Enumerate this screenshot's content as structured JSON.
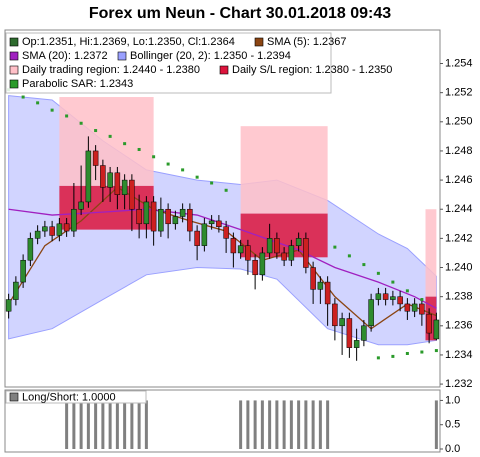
{
  "chart_data": {
    "type": "candlestick",
    "title": "Forex um Neun - Chart 30.01.2018 09:43",
    "candle_label": "Op:1.2351, Hi:1.2369, Lo:1.2350, Cl:1.2364",
    "candle_color": "#2e6b2e",
    "up_color": "#2e8b2e",
    "down_color": "#cc2020",
    "open": [
      1.237,
      1.2378,
      1.239,
      1.2405,
      1.242,
      1.2425,
      1.2428,
      1.2422,
      1.243,
      1.2425,
      1.244,
      1.2445,
      1.248,
      1.247,
      1.2455,
      1.2465,
      1.245,
      1.246,
      1.244,
      1.243,
      1.2445,
      1.2425,
      1.244,
      1.243,
      1.2435,
      1.244,
      1.2425,
      1.2415,
      1.243,
      1.2432,
      1.2428,
      1.242,
      1.241,
      1.2415,
      1.2405,
      1.2395,
      1.241,
      1.242,
      1.241,
      1.2405,
      1.2415,
      1.242,
      1.24,
      1.2385,
      1.239,
      1.2375,
      1.236,
      1.2365,
      1.2345,
      1.235,
      1.236,
      1.2378,
      1.2382,
      1.2378,
      1.238,
      1.2375,
      1.237,
      1.2375,
      1.2368,
      1.2351
    ],
    "high": [
      1.2382,
      1.2394,
      1.2409,
      1.2424,
      1.2429,
      1.2432,
      1.2432,
      1.2434,
      1.2434,
      1.2458,
      1.247,
      1.249,
      1.2484,
      1.2474,
      1.2469,
      1.2469,
      1.2464,
      1.2464,
      1.245,
      1.2449,
      1.2449,
      1.2448,
      1.2444,
      1.2439,
      1.2444,
      1.2444,
      1.2429,
      1.2434,
      1.2436,
      1.2436,
      1.2432,
      1.2424,
      1.2419,
      1.2419,
      1.2409,
      1.2414,
      1.243,
      1.2424,
      1.2414,
      1.2419,
      1.2424,
      1.2424,
      1.2404,
      1.2394,
      1.2394,
      1.2379,
      1.2369,
      1.2369,
      1.2358,
      1.2364,
      1.2382,
      1.2386,
      1.2386,
      1.2384,
      1.2384,
      1.2379,
      1.2379,
      1.2379,
      1.2372,
      1.2369
    ],
    "low": [
      1.2365,
      1.2374,
      1.2386,
      1.2401,
      1.2416,
      1.2421,
      1.2418,
      1.2418,
      1.2421,
      1.2421,
      1.2436,
      1.2441,
      1.246,
      1.2445,
      1.2445,
      1.244,
      1.244,
      1.2425,
      1.242,
      1.242,
      1.2415,
      1.2421,
      1.242,
      1.2426,
      1.2431,
      1.2418,
      1.2405,
      1.2411,
      1.2426,
      1.2424,
      1.241,
      1.24,
      1.2406,
      1.2395,
      1.2385,
      1.2391,
      1.2406,
      1.2406,
      1.2401,
      1.2401,
      1.2411,
      1.2396,
      1.2375,
      1.2375,
      1.236,
      1.235,
      1.234,
      1.2338,
      1.2336,
      1.2346,
      1.2356,
      1.2374,
      1.2374,
      1.2374,
      1.237,
      1.2364,
      1.2366,
      1.236,
      1.2348,
      1.235
    ],
    "close": [
      1.2378,
      1.239,
      1.2405,
      1.242,
      1.2425,
      1.2428,
      1.2422,
      1.243,
      1.2425,
      1.244,
      1.2445,
      1.248,
      1.247,
      1.2455,
      1.2465,
      1.245,
      1.246,
      1.244,
      1.243,
      1.2445,
      1.2425,
      1.244,
      1.243,
      1.2435,
      1.244,
      1.2425,
      1.2415,
      1.243,
      1.2432,
      1.2428,
      1.242,
      1.241,
      1.2415,
      1.2405,
      1.2395,
      1.241,
      1.242,
      1.241,
      1.2405,
      1.2415,
      1.242,
      1.24,
      1.2385,
      1.239,
      1.2375,
      1.236,
      1.2365,
      1.2345,
      1.235,
      1.236,
      1.2378,
      1.2382,
      1.2378,
      1.238,
      1.2375,
      1.237,
      1.2375,
      1.2368,
      1.2355,
      1.2364
    ],
    "ylim": [
      1.2318,
      1.2563
    ],
    "yticks": [
      1.232,
      1.234,
      1.236,
      1.238,
      {
        "value": 1.24,
        "label": "1.240"
      },
      1.242,
      1.244,
      1.246,
      1.248,
      {
        "value": 1.25,
        "label": "1.250"
      },
      1.252,
      1.254
    ],
    "series": [
      {
        "name": "SMA (5): 1.2367",
        "kind": "line",
        "color": "#8b4513",
        "x": [
          0,
          5,
          10,
          15,
          20,
          25,
          30,
          35,
          40,
          45,
          50,
          55,
          59
        ],
        "values": [
          1.2375,
          1.2415,
          1.2432,
          1.2455,
          1.244,
          1.2432,
          1.2425,
          1.2405,
          1.2412,
          1.238,
          1.2358,
          1.2375,
          1.2367
        ]
      },
      {
        "name": "SMA (20): 1.2372",
        "kind": "line",
        "color": "#a020c0",
        "x": [
          0,
          6,
          13,
          19,
          26,
          32,
          40,
          45,
          51,
          56,
          59
        ],
        "values": [
          1.244,
          1.2436,
          1.2438,
          1.244,
          1.2436,
          1.2426,
          1.2412,
          1.24,
          1.239,
          1.238,
          1.2372
        ]
      },
      {
        "name": "Bollinger (20, 2): 1.2350 - 1.2394",
        "kind": "band",
        "color": "#9aa0ff",
        "x": [
          0,
          6,
          13,
          19,
          26,
          32,
          37,
          44,
          51,
          55,
          59
        ],
        "upper": [
          1.2518,
          1.2515,
          1.2487,
          1.2467,
          1.246,
          1.2457,
          1.246,
          1.2446,
          1.2423,
          1.2413,
          1.2394
        ],
        "lower": [
          1.2351,
          1.2358,
          1.2378,
          1.2395,
          1.24,
          1.2399,
          1.2392,
          1.2358,
          1.2347,
          1.2347,
          1.235
        ]
      },
      {
        "name": "Daily trading region: 1.2440 - 1.2380",
        "kind": "region",
        "color": "#ffc0c8",
        "boxes": [
          {
            "x": [
              7,
              20
            ],
            "values": [
              1.2517,
              1.2456
            ]
          },
          {
            "x": [
              32,
              44
            ],
            "values": [
              1.2497,
              1.2437
            ]
          },
          {
            "x": [
              57.5,
              59
            ],
            "values": [
              1.244,
              1.238
            ]
          }
        ]
      },
      {
        "name": "Daily S/L region: 1.2380 - 1.2350",
        "kind": "region",
        "color": "#dc143c",
        "boxes": [
          {
            "x": [
              7,
              20
            ],
            "values": [
              1.2456,
              1.2426
            ]
          },
          {
            "x": [
              32,
              44
            ],
            "values": [
              1.2437,
              1.2407
            ]
          },
          {
            "x": [
              57.5,
              59
            ],
            "values": [
              1.238,
              1.235
            ]
          }
        ]
      },
      {
        "name": "Parabolic SAR: 1.2343",
        "kind": "dots",
        "color": "#2a9a2a",
        "x": [
          0,
          2,
          4,
          6,
          8,
          10,
          12,
          14,
          16,
          18,
          20,
          22,
          24,
          26,
          28,
          30,
          45,
          47,
          49,
          51,
          53,
          55,
          57,
          51,
          53,
          55,
          57,
          59
        ],
        "values": [
          1.2522,
          1.2517,
          1.2513,
          1.2508,
          1.2504,
          1.2499,
          1.2494,
          1.249,
          1.2485,
          1.2481,
          1.2476,
          1.2471,
          1.2467,
          1.2462,
          1.2458,
          1.2453,
          1.2414,
          1.2408,
          1.2402,
          1.2396,
          1.239,
          1.2384,
          1.2378,
          1.2338,
          1.2339,
          1.2341,
          1.2342,
          1.2343
        ]
      }
    ],
    "panel": {
      "title": "Long/Short: 1.0000",
      "color": "#808080",
      "values": [
        0,
        0,
        0,
        0,
        0,
        0,
        0,
        0,
        1,
        1,
        1,
        1,
        1,
        1,
        1,
        1,
        1,
        1,
        1,
        1,
        0,
        0,
        0,
        0,
        0,
        0,
        0,
        0,
        0,
        0,
        0,
        0,
        1,
        1,
        1,
        1,
        1,
        1,
        1,
        1,
        1,
        1,
        1,
        1,
        1,
        0,
        0,
        0,
        0,
        0,
        0,
        0,
        0,
        0,
        0,
        0,
        0,
        0,
        0,
        1
      ],
      "ylim": [
        0,
        1.05
      ],
      "yticks": [
        {
          "value": 0,
          "label": "0.0"
        },
        {
          "value": 0.5,
          "label": "0.5"
        },
        {
          "value": 1,
          "label": "1.0"
        }
      ]
    }
  }
}
